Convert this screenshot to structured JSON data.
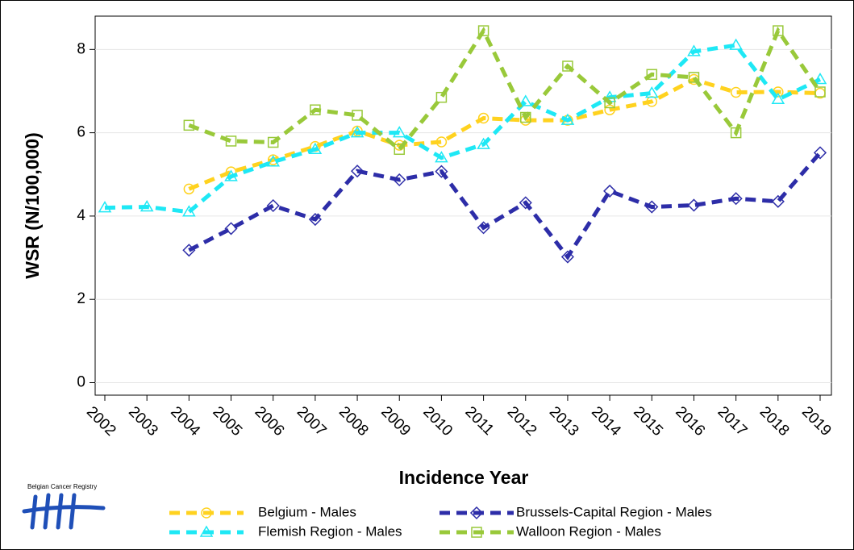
{
  "chart_data": {
    "type": "line",
    "xlabel": "Incidence Year",
    "ylabel": "WSR (N/100,000)",
    "logo_text": "Belgian Cancer Registry",
    "categories": [
      "2002",
      "2003",
      "2004",
      "2005",
      "2006",
      "2007",
      "2008",
      "2009",
      "2010",
      "2011",
      "2012",
      "2013",
      "2014",
      "2015",
      "2016",
      "2017",
      "2018",
      "2019"
    ],
    "ylim": [
      -0.3,
      8.8
    ],
    "yticks": [
      0,
      2,
      4,
      6,
      8
    ],
    "grid": true,
    "series": [
      {
        "name": "Belgium - Males",
        "color": "#ffd21f",
        "marker": "circle",
        "values": [
          null,
          null,
          4.65,
          5.06,
          5.35,
          5.67,
          6.04,
          5.7,
          5.78,
          6.35,
          6.3,
          6.3,
          6.55,
          6.75,
          7.28,
          6.97,
          6.98,
          6.95
        ]
      },
      {
        "name": "Brussels-Capital Region - Males",
        "color": "#2d2da8",
        "marker": "diamond",
        "values": [
          null,
          null,
          3.18,
          3.7,
          4.25,
          3.92,
          5.08,
          4.87,
          5.07,
          3.72,
          4.32,
          3.02,
          4.6,
          4.22,
          4.26,
          4.42,
          4.35,
          5.52
        ]
      },
      {
        "name": "Flemish Region - Males",
        "color": "#1ee8f5",
        "marker": "triangle",
        "values": [
          4.2,
          4.22,
          4.1,
          4.95,
          5.3,
          5.6,
          6.0,
          6.0,
          5.4,
          5.72,
          6.75,
          6.3,
          6.85,
          6.95,
          7.95,
          8.1,
          6.8,
          7.28
        ]
      },
      {
        "name": "Walloon Region - Males",
        "color": "#99c93a",
        "marker": "square",
        "values": [
          null,
          null,
          6.18,
          5.8,
          5.77,
          6.55,
          6.42,
          5.6,
          6.85,
          8.45,
          6.37,
          7.6,
          6.72,
          7.4,
          7.33,
          6.0,
          8.45,
          6.98
        ]
      }
    ]
  }
}
